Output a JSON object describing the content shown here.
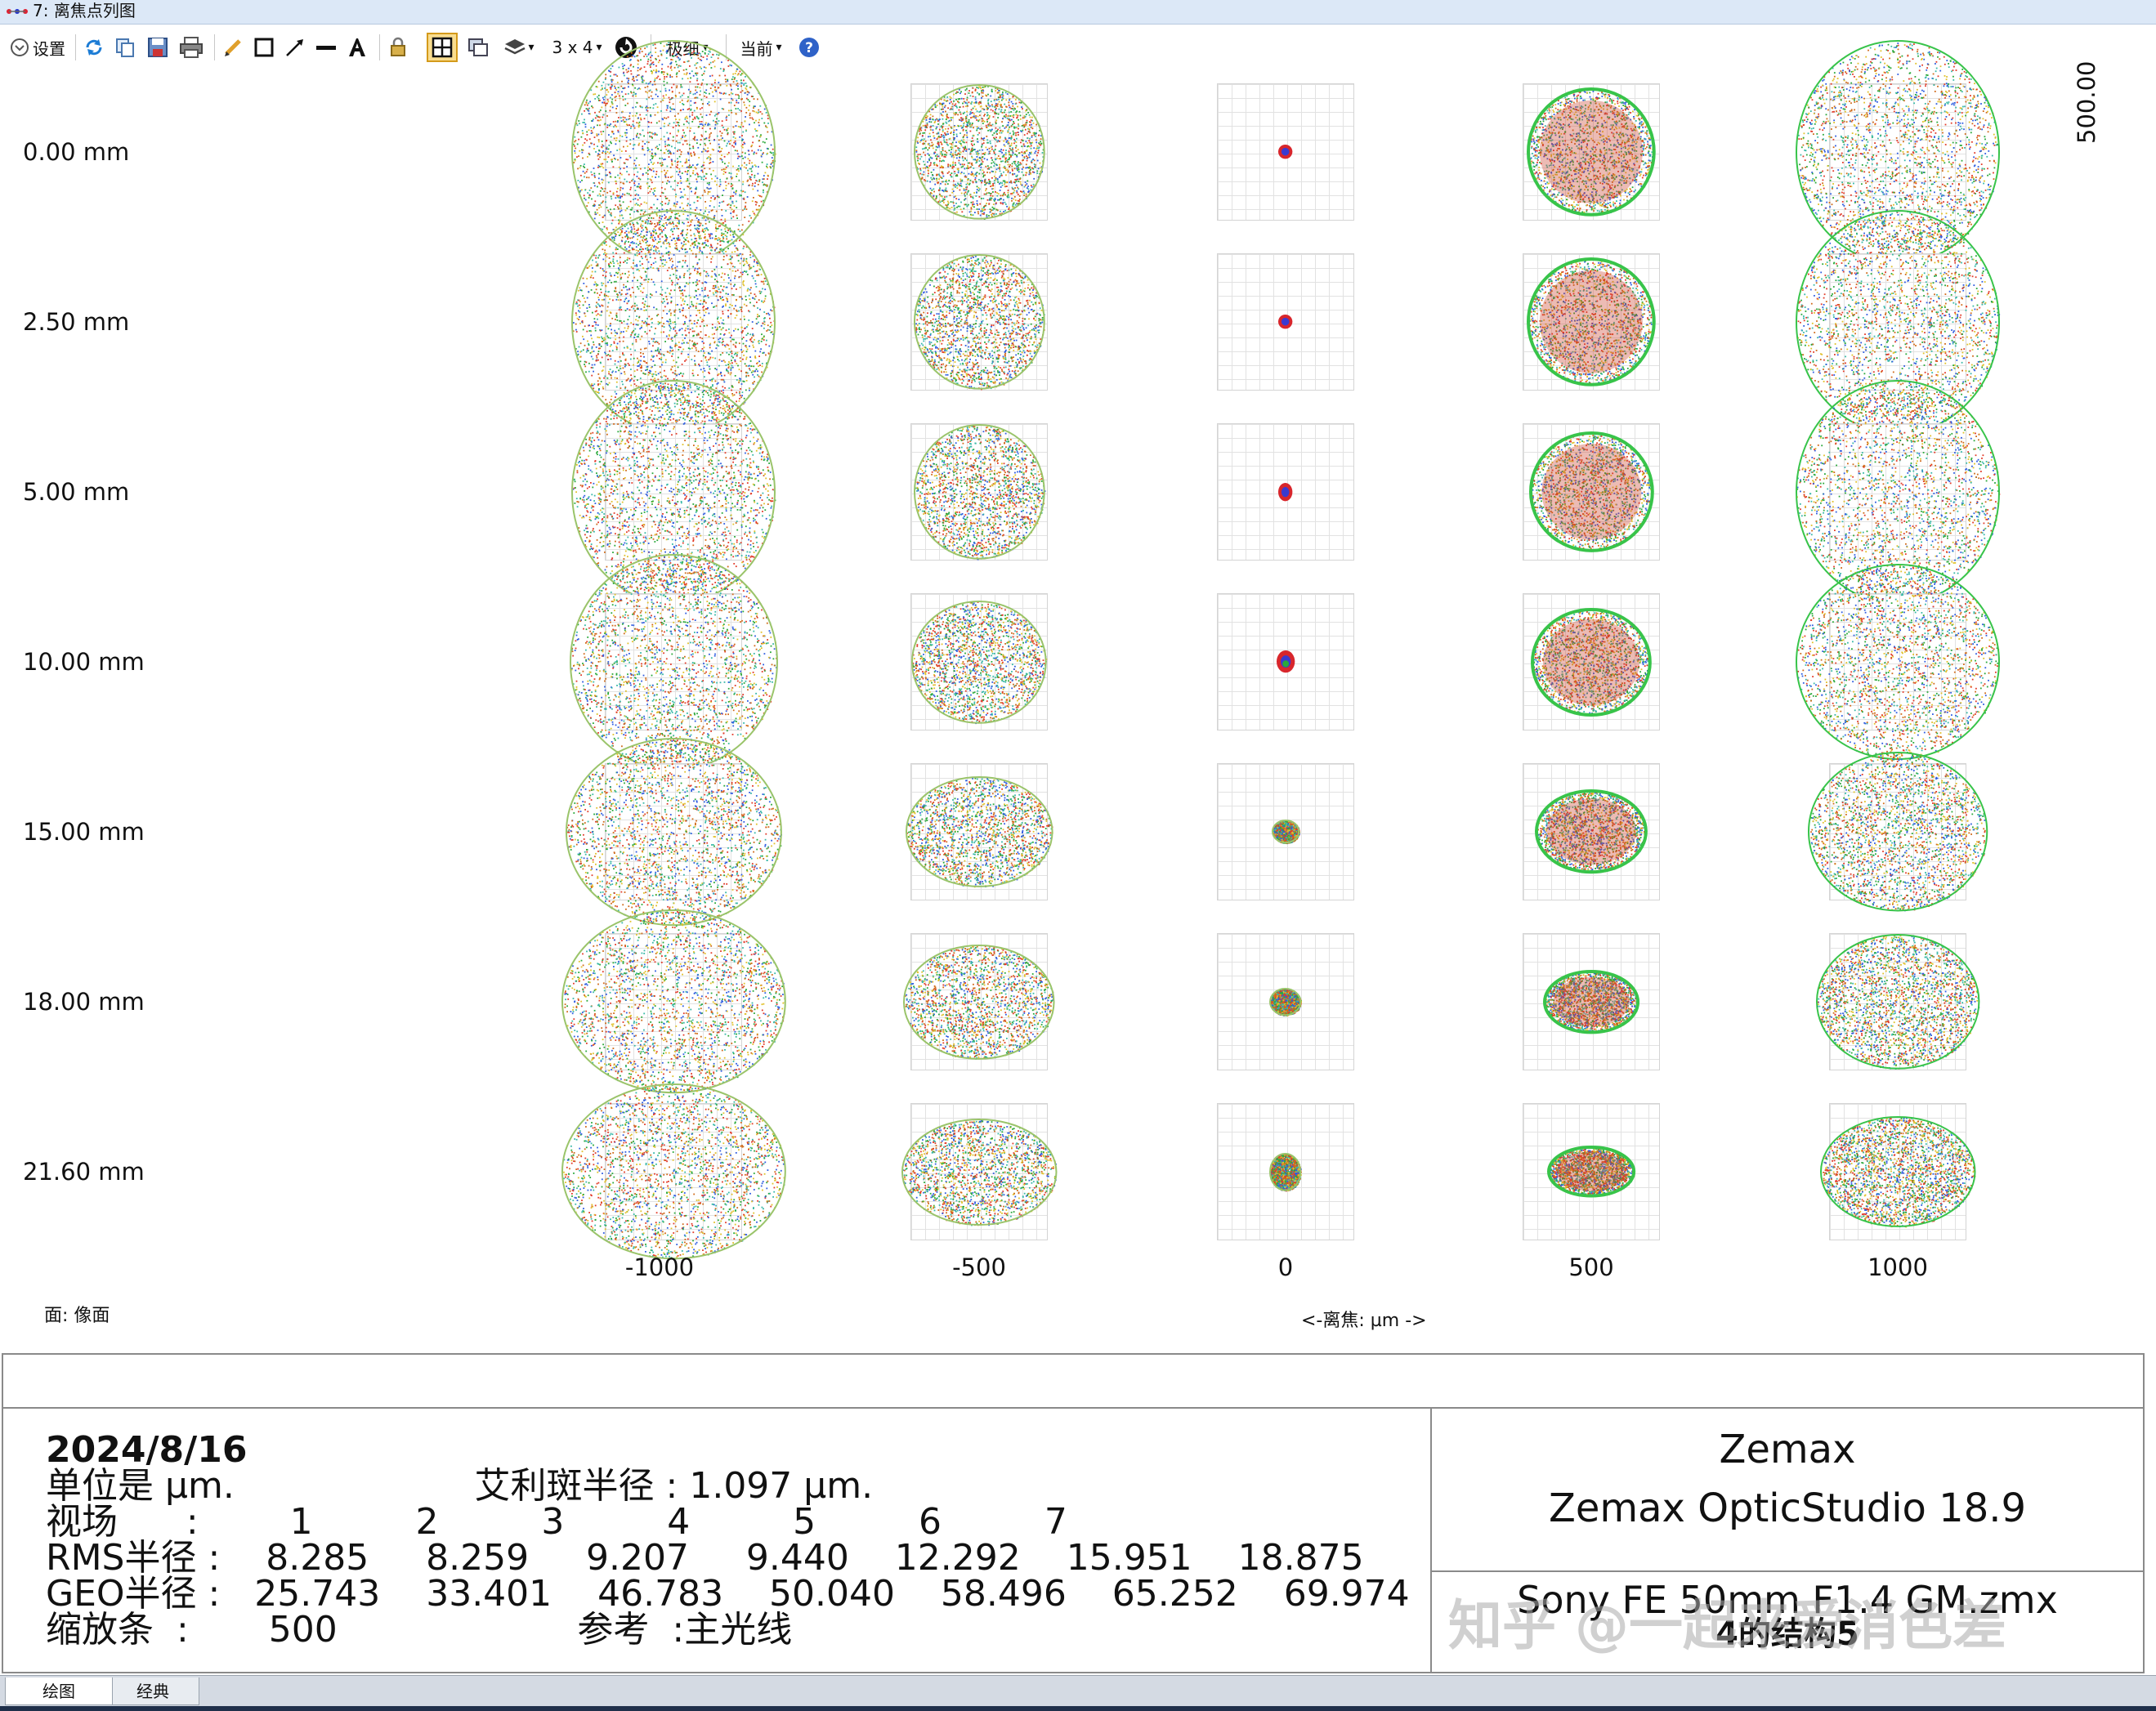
{
  "window": {
    "title": "7: 离焦点列图"
  },
  "toolbar": {
    "settings_label": "设置",
    "layout_label": "3 x 4",
    "detail_label": "极细",
    "current_label": "当前"
  },
  "plot": {
    "field_labels": [
      "0.00 mm",
      "2.50 mm",
      "5.00 mm",
      "10.00 mm",
      "15.00 mm",
      "18.00 mm",
      "21.60 mm"
    ],
    "defocus_labels": [
      "-1000",
      "-500",
      "0",
      "500",
      "1000"
    ],
    "scale_label": "500.00",
    "surface_label": "面: 像面",
    "defocus_axis_label": "<-离焦: µm ->",
    "spot_sizes": [
      [
        [
          1.0,
          1.1
        ],
        [
          0.64,
          0.66
        ],
        [
          0.07,
          0.07
        ],
        [
          0.62,
          0.62
        ],
        [
          1.0,
          1.1
        ]
      ],
      [
        [
          1.0,
          1.1
        ],
        [
          0.64,
          0.66
        ],
        [
          0.07,
          0.07
        ],
        [
          0.62,
          0.62
        ],
        [
          1.0,
          1.1
        ]
      ],
      [
        [
          1.0,
          1.1
        ],
        [
          0.64,
          0.66
        ],
        [
          0.07,
          0.09
        ],
        [
          0.6,
          0.58
        ],
        [
          1.0,
          1.1
        ]
      ],
      [
        [
          1.02,
          1.06
        ],
        [
          0.66,
          0.6
        ],
        [
          0.09,
          0.11
        ],
        [
          0.58,
          0.52
        ],
        [
          1.0,
          0.96
        ]
      ],
      [
        [
          1.06,
          0.92
        ],
        [
          0.72,
          0.54
        ],
        [
          0.13,
          0.11
        ],
        [
          0.54,
          0.4
        ],
        [
          0.88,
          0.78
        ]
      ],
      [
        [
          1.1,
          0.9
        ],
        [
          0.74,
          0.56
        ],
        [
          0.15,
          0.13
        ],
        [
          0.46,
          0.3
        ],
        [
          0.8,
          0.66
        ]
      ],
      [
        [
          1.1,
          0.86
        ],
        [
          0.76,
          0.52
        ],
        [
          0.15,
          0.18
        ],
        [
          0.42,
          0.24
        ],
        [
          0.76,
          0.54
        ]
      ]
    ]
  },
  "info": {
    "date": "2024/8/16",
    "units_line": "单位是 µm.                     艾利斑半径 : 1.097 µm.",
    "field_line": "视场      :        1         2         3         4         5         6         7",
    "rms_line": "RMS半径 :    8.285     8.259     9.207     9.440    12.292    15.951    18.875",
    "geo_line": "GEO半径 :   25.743    33.401    46.783    50.040    58.496    65.252    69.974",
    "scale_line": "缩放条  :       500                     参考  :主光线",
    "company": "Zemax",
    "product": "Zemax OpticStudio 18.9",
    "file": "Sony FE 50mm F1.4 GM.zmx",
    "config": "4的结构5",
    "watermark": "知乎 @一起来爱消色差"
  },
  "tabs": {
    "plot_tab": "绘图",
    "classic_tab": "经典"
  }
}
